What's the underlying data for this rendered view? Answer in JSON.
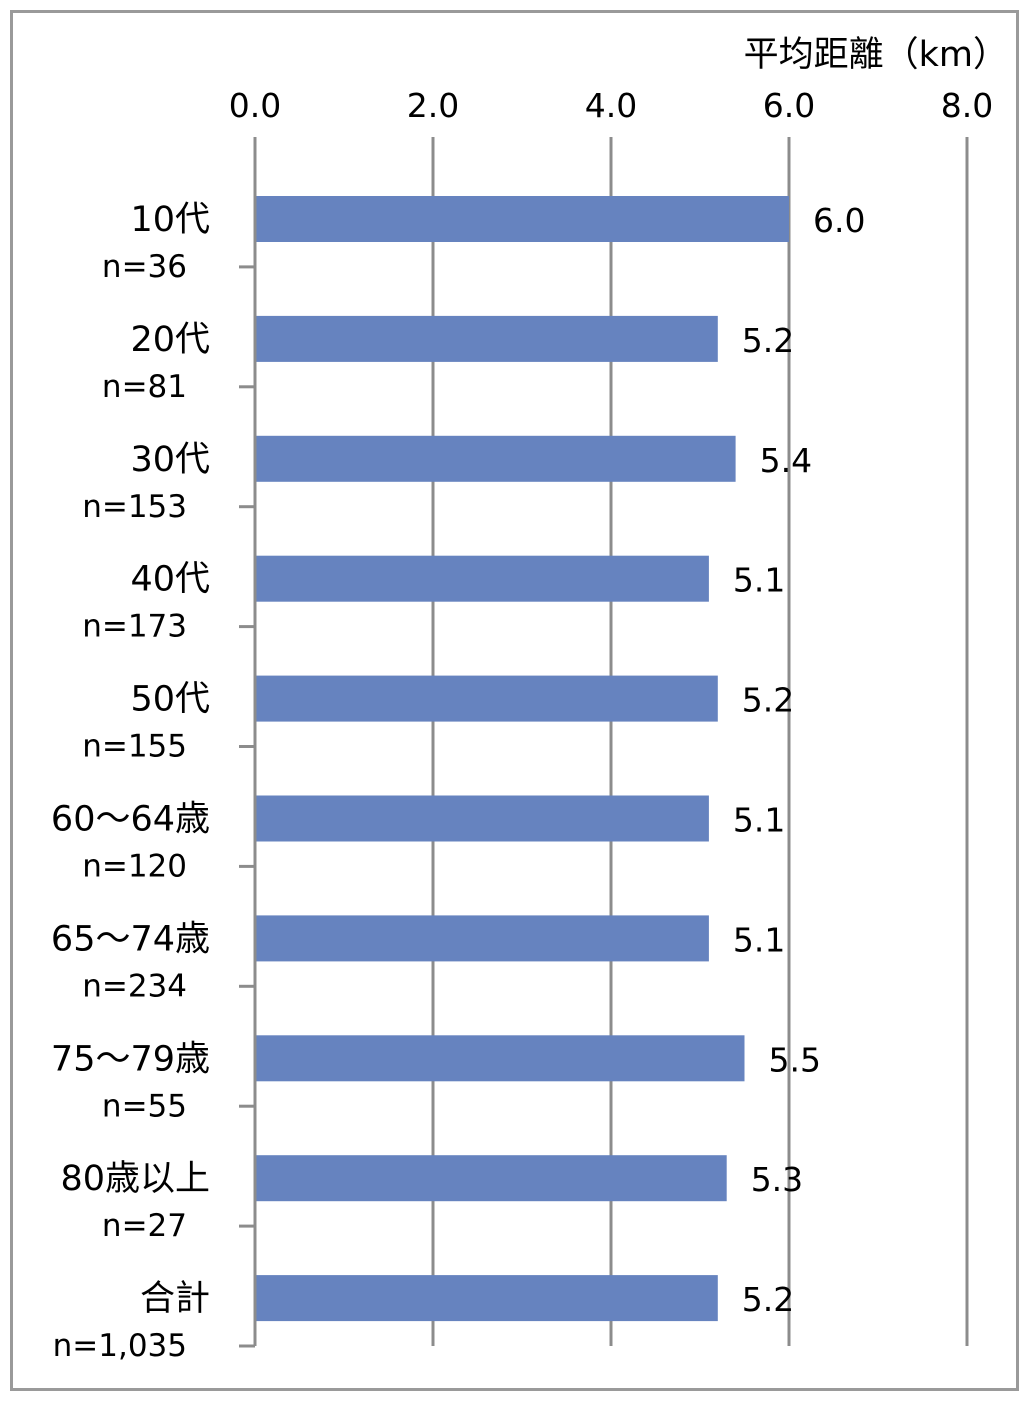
{
  "chart_data": {
    "type": "bar",
    "orientation": "horizontal",
    "unit_label": "平均距離（km）",
    "xlim": [
      0,
      8
    ],
    "xticks": [
      "0.0",
      "2.0",
      "4.0",
      "6.0",
      "8.0"
    ],
    "grid": true,
    "categories": [
      {
        "name": "10代",
        "n": "n=36"
      },
      {
        "name": "20代",
        "n": "n=81"
      },
      {
        "name": "30代",
        "n": "n=153"
      },
      {
        "name": "40代",
        "n": "n=173"
      },
      {
        "name": "50代",
        "n": "n=155"
      },
      {
        "name": "60～64歳",
        "n": "n=120"
      },
      {
        "name": "65～74歳",
        "n": "n=234"
      },
      {
        "name": "75～79歳",
        "n": "n=55"
      },
      {
        "name": "80歳以上",
        "n": "n=27"
      },
      {
        "name": "合計",
        "n": "n=1,035"
      }
    ],
    "values": [
      6.0,
      5.2,
      5.4,
      5.1,
      5.2,
      5.1,
      5.1,
      5.5,
      5.3,
      5.2
    ],
    "value_labels": [
      "6.0",
      "5.2",
      "5.4",
      "5.1",
      "5.2",
      "5.1",
      "5.1",
      "5.5",
      "5.3",
      "5.2"
    ],
    "colors": {
      "bar": "#6683bf",
      "grid": "#8c8c8c",
      "axis": "#8c8c8c"
    }
  }
}
